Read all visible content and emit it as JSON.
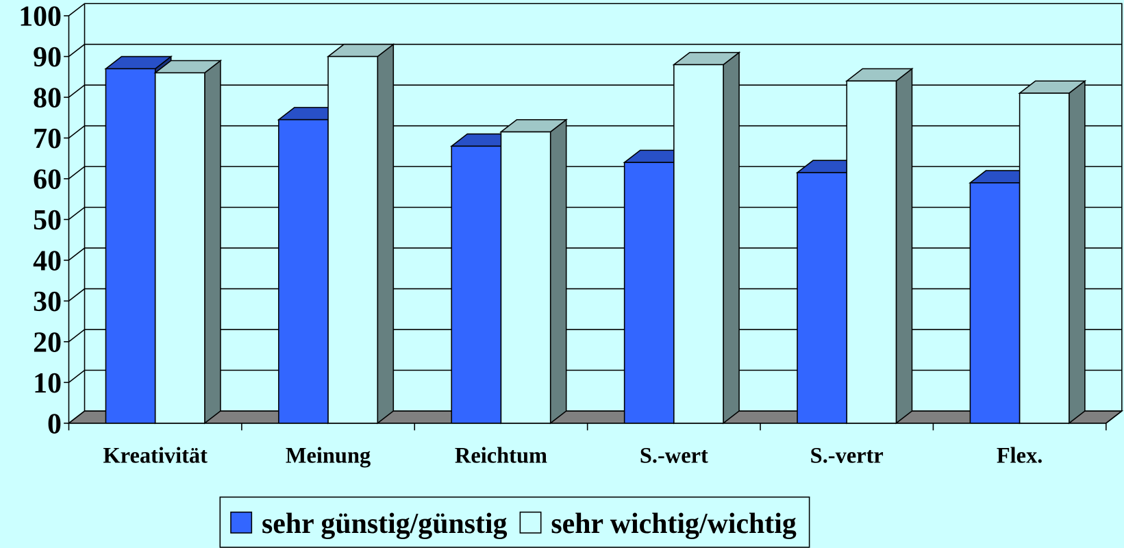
{
  "chart_data": {
    "type": "bar3d",
    "categories": [
      "Kreativität",
      "Meinung",
      "Reichtum",
      "S.-wert",
      "S.-vertr",
      "Flex."
    ],
    "series": [
      {
        "name": "sehr günstig/günstig",
        "color": "#3366ff",
        "values": [
          87,
          74.5,
          68,
          64,
          61.5,
          59
        ]
      },
      {
        "name": "sehr wichtig/wichtig",
        "color": "#ccffff",
        "values": [
          86,
          90,
          71.5,
          88,
          84,
          81
        ]
      }
    ],
    "ylim": [
      0,
      100
    ],
    "yticks": [
      0,
      10,
      20,
      30,
      40,
      50,
      60,
      70,
      80,
      90,
      100
    ],
    "grid": true,
    "legend": "bottom"
  }
}
